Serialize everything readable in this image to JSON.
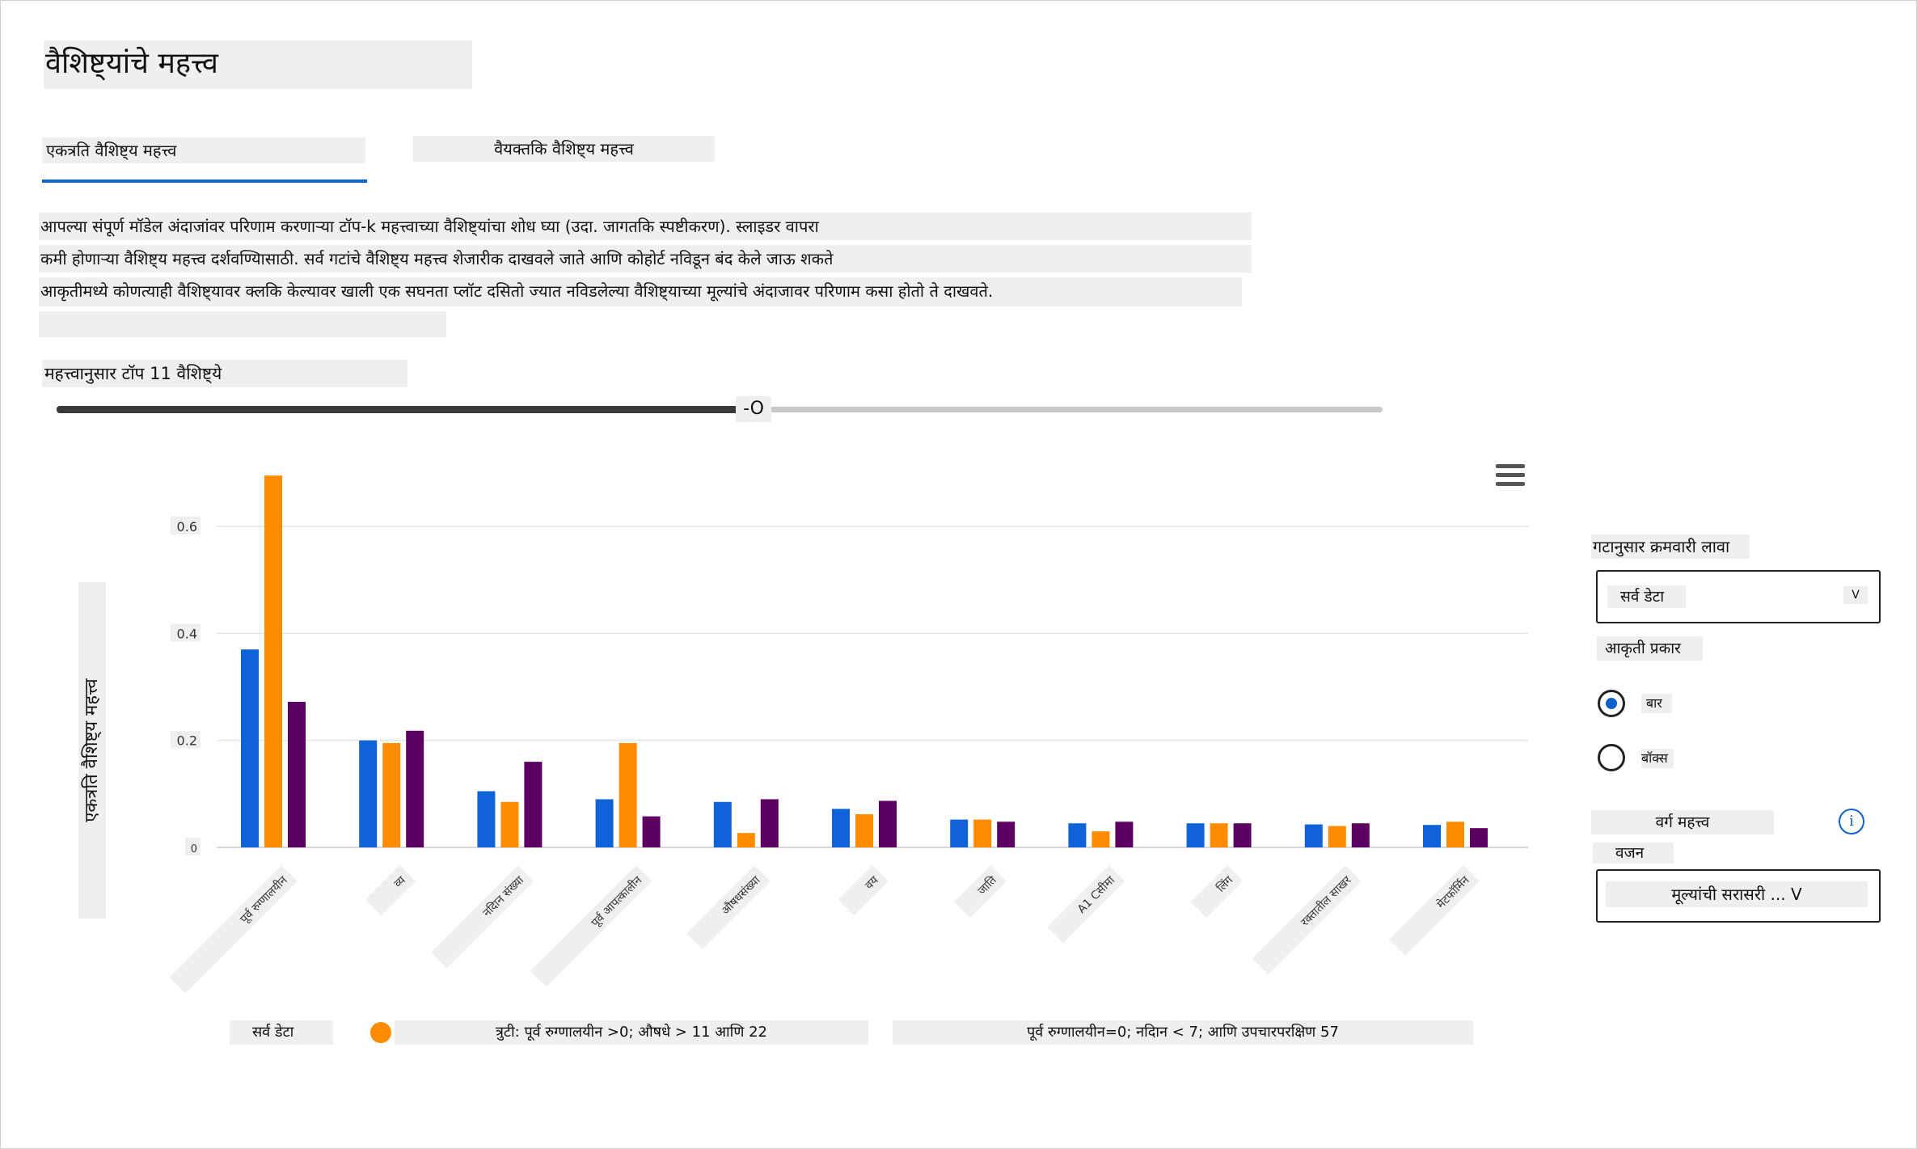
{
  "header": {
    "title": "वैशिष्ट्यांचे महत्त्व",
    "tabs": [
      {
        "label": "एकत्रति वैशिष्ट्य महत्त्व"
      },
      {
        "label": "वैयक्तकि वैशिष्ट्य महत्त्व"
      }
    ]
  },
  "description": {
    "lines": [
      "आपल्या संपूर्ण मॉडेल अंदाजांवर परिणाम करणाऱ्या टॉप-k महत्त्वाच्या वैशिष्ट्यांचा शोध घ्या (उदा. जागतकि स्पष्टीकरण). स्लाइडर वापरा",
      "कमी होणाऱ्या वैशिष्ट्य महत्त्व दर्शवण्यािसाठी. सर्व गटांचे वैशिष्ट्य महत्त्व शेजारीक दाखवले जाते आणि कोहोर्ट नविडून बंद केले जाऊ शकते",
      "आकृतीमध्ये कोणत्याही वैशिष्ट्यावर क्लकि केल्यावर खाली एक सघनता प्लॉट दसितो ज्यात नविडलेल्या वैशिष्ट्याच्या मूल्यांचे अंदाजावर परिणाम कसा होतो ते दाखवते."
    ]
  },
  "slider": {
    "label": "महत्त्वानुसार टॉप 11 वैशिष्ट्ये",
    "value": 11,
    "fraction": 0.52,
    "thumb_label": "-O"
  },
  "chart_data": {
    "type": "bar",
    "ylabel": "एकत्रति वैशिष्ट्य महत्त्व",
    "ylim": [
      0,
      0.7
    ],
    "yticks": [
      {
        "value": 0,
        "label": "0"
      },
      {
        "value": 0.2,
        "label": "0.2"
      },
      {
        "value": 0.4,
        "label": "0.4"
      },
      {
        "value": 0.6,
        "label": "0.6"
      }
    ],
    "grid": true,
    "categories": [
      "पूर्व रुग्णालयीन",
      "व्य",
      "नदिान संख्या",
      "पूर्व आपत्कालीन",
      "औषधसंख्या",
      "वय",
      "जाति",
      "A1 Cसीमा",
      "लिंग",
      "रक्तातील साखर",
      "मेटफॉर्मिन"
    ],
    "series": [
      {
        "name": "सर्व डेटा",
        "color": "#0f62d8",
        "values": [
          0.37,
          0.2,
          0.105,
          0.09,
          0.085,
          0.072,
          0.052,
          0.045,
          0.045,
          0.043,
          0.042
        ]
      },
      {
        "name": "त्रुटी: पूर्व रुग्णालयीन >0; औषधे > 11 आणि  22",
        "color": "#ff8c00",
        "values": [
          0.695,
          0.195,
          0.085,
          0.195,
          0.027,
          0.062,
          0.052,
          0.03,
          0.045,
          0.04,
          0.048
        ]
      },
      {
        "name": "पूर्व रुग्णालयीन=0; नदिान < 7; आणि उपचारपरक्षिण  57",
        "color": "#5b0060",
        "values": [
          0.272,
          0.218,
          0.16,
          0.058,
          0.09,
          0.087,
          0.048,
          0.048,
          0.045,
          0.045,
          0.036
        ]
      }
    ],
    "legend_position": "bottom"
  },
  "sidebar": {
    "sort_label": "गटानुसार क्रमवारी लावा",
    "cohort_value": "सर्व डेटा",
    "chevron": "V",
    "chart_type_label": "आकृती प्रकार",
    "radio_bar": "बार",
    "radio_box": "बॉक्स",
    "selected_chart_type": "बार",
    "class_importance_label": "वर्ग महत्त्व",
    "info_glyph": "i",
    "weight_label": "वजन",
    "weight_value": "मूल्यांची सरासरी ... V"
  },
  "icons": {
    "menu": "hamburger-menu-icon",
    "info": "info-icon"
  }
}
